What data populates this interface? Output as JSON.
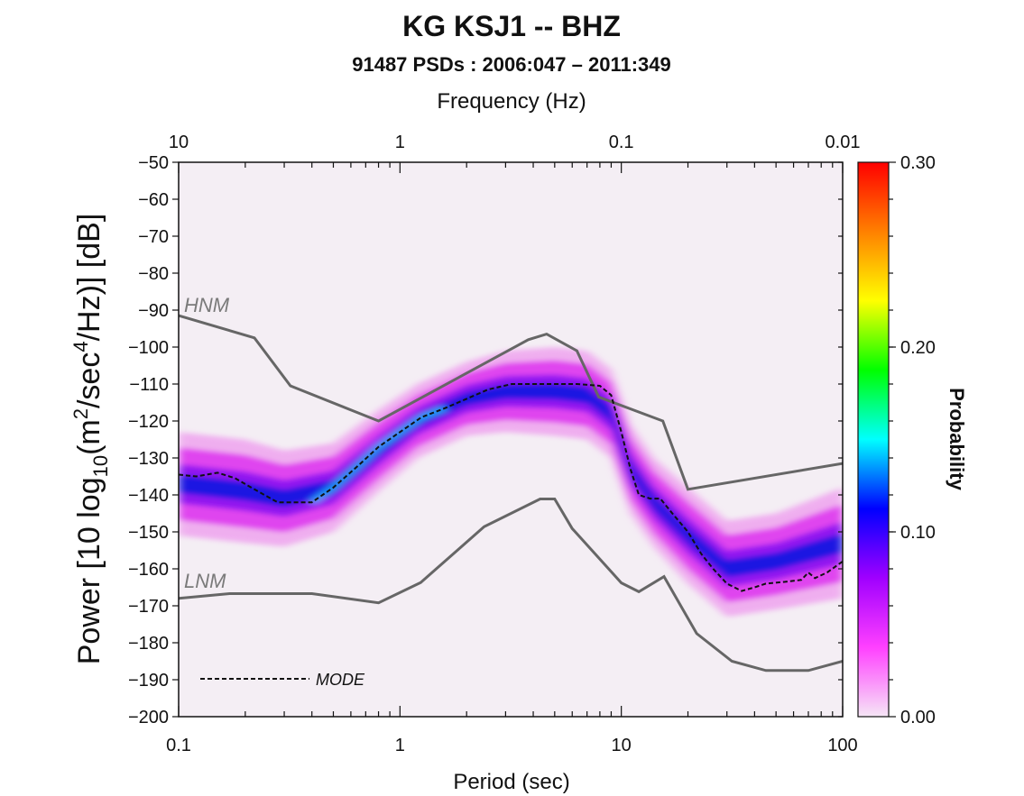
{
  "chart_data": {
    "type": "heatmap",
    "title": "KG KSJ1 -- BHZ",
    "subtitle": "91487 PSDs : 2006:047 – 2011:349",
    "xlabel": "Period (sec)",
    "x2label": "Frequency (Hz)",
    "ylabel": "Power [10 log10(m²/sec⁴/Hz)] [dB]",
    "ylabel_parts": {
      "main1": "Power [10 log",
      "sub": "10",
      "main2": "(m",
      "sup1": "2",
      "main3": "/sec",
      "sup2": "4",
      "main4": "/Hz)] [dB]"
    },
    "x_scale": "log",
    "xlim": [
      0.1,
      100
    ],
    "ylim": [
      -200,
      -50
    ],
    "x_ticks": [
      {
        "value": 0.1,
        "label": "0.1"
      },
      {
        "value": 1,
        "label": "1"
      },
      {
        "value": 10,
        "label": "10"
      },
      {
        "value": 100,
        "label": "100"
      }
    ],
    "x2_ticks": [
      {
        "value": 0.1,
        "label": "10"
      },
      {
        "value": 1,
        "label": "1"
      },
      {
        "value": 10,
        "label": "0.1"
      },
      {
        "value": 100,
        "label": "0.01"
      }
    ],
    "y_ticks": [
      -50,
      -60,
      -70,
      -80,
      -90,
      -100,
      -110,
      -120,
      -130,
      -140,
      -150,
      -160,
      -170,
      -180,
      -190,
      -200
    ],
    "y_tick_labels": [
      "−50",
      "−60",
      "−70",
      "−80",
      "−90",
      "−100",
      "−110",
      "−120",
      "−130",
      "−140",
      "−150",
      "−160",
      "−170",
      "−180",
      "−190",
      "−200"
    ],
    "colorbar": {
      "label": "Probability",
      "range": [
        0.0,
        0.3
      ],
      "ticks": [
        {
          "value": 0.3,
          "label": "0.30"
        },
        {
          "value": 0.2,
          "label": "0.20"
        },
        {
          "value": 0.1,
          "label": "0.10"
        },
        {
          "value": 0.0,
          "label": "0.00"
        }
      ],
      "colors": [
        "#f5e6f5",
        "#ff40ff",
        "#a000ff",
        "#0000ff",
        "#00ffff",
        "#00ff00",
        "#ffff00",
        "#ff8000",
        "#ff0000"
      ]
    },
    "noise_models": [
      {
        "name": "HNM",
        "color": "#666666",
        "points": [
          [
            0.1,
            -91.5
          ],
          [
            0.22,
            -97.5
          ],
          [
            0.32,
            -110.5
          ],
          [
            0.8,
            -120
          ],
          [
            3.8,
            -98
          ],
          [
            4.6,
            -96.5
          ],
          [
            6.3,
            -101
          ],
          [
            7.9,
            -113.5
          ],
          [
            15.4,
            -120
          ],
          [
            20,
            -138.5
          ],
          [
            100,
            -131.5
          ]
        ]
      },
      {
        "name": "LNM",
        "color": "#666666",
        "points": [
          [
            0.1,
            -168
          ],
          [
            0.17,
            -166.7
          ],
          [
            0.4,
            -166.7
          ],
          [
            0.8,
            -169.2
          ],
          [
            1.24,
            -163.7
          ],
          [
            2.4,
            -148.6
          ],
          [
            4.3,
            -141.1
          ],
          [
            5.0,
            -141.1
          ],
          [
            6.0,
            -149.1
          ],
          [
            10.0,
            -163.8
          ],
          [
            12.0,
            -166.2
          ],
          [
            15.6,
            -162.1
          ],
          [
            21.9,
            -177.5
          ],
          [
            31.6,
            -185
          ],
          [
            45,
            -187.5
          ],
          [
            70,
            -187.5
          ],
          [
            100,
            -185
          ]
        ]
      }
    ],
    "mode": {
      "name": "MODE",
      "points": [
        [
          0.1,
          -134.5
        ],
        [
          0.12,
          -135
        ],
        [
          0.15,
          -134
        ],
        [
          0.18,
          -135.5
        ],
        [
          0.22,
          -138.5
        ],
        [
          0.28,
          -142
        ],
        [
          0.4,
          -142
        ],
        [
          0.5,
          -138
        ],
        [
          0.65,
          -132
        ],
        [
          0.8,
          -127
        ],
        [
          1.0,
          -123
        ],
        [
          1.25,
          -119
        ],
        [
          1.6,
          -116.5
        ],
        [
          2.0,
          -114
        ],
        [
          2.5,
          -111.5
        ],
        [
          3.2,
          -110
        ],
        [
          4.0,
          -110
        ],
        [
          5.0,
          -110
        ],
        [
          6.3,
          -110
        ],
        [
          8.0,
          -110.5
        ],
        [
          9.0,
          -113
        ],
        [
          10.0,
          -123
        ],
        [
          11.0,
          -133
        ],
        [
          12.0,
          -140
        ],
        [
          13.5,
          -141
        ],
        [
          15.0,
          -141
        ],
        [
          17.0,
          -145
        ],
        [
          20.0,
          -150
        ],
        [
          23.0,
          -156
        ],
        [
          26.0,
          -160
        ],
        [
          30.0,
          -164
        ],
        [
          35.0,
          -166
        ],
        [
          40.0,
          -165
        ],
        [
          45.0,
          -164
        ],
        [
          55.0,
          -163.5
        ],
        [
          65.0,
          -163
        ],
        [
          70.0,
          -161
        ],
        [
          75.0,
          -162.5
        ],
        [
          85.0,
          -161
        ],
        [
          100.0,
          -158
        ]
      ]
    },
    "legend": {
      "label": "MODE",
      "placement": "bottom-left"
    },
    "density_bands": [
      {
        "period": 0.1,
        "center": -137,
        "width": 14
      },
      {
        "period": 0.2,
        "center": -139,
        "width": 14
      },
      {
        "period": 0.3,
        "center": -141,
        "width": 13
      },
      {
        "period": 0.5,
        "center": -138,
        "width": 12
      },
      {
        "period": 0.8,
        "center": -128,
        "width": 11
      },
      {
        "period": 1.2,
        "center": -120,
        "width": 10
      },
      {
        "period": 2.0,
        "center": -114,
        "width": 10
      },
      {
        "period": 3.0,
        "center": -112,
        "width": 11
      },
      {
        "period": 5.0,
        "center": -112,
        "width": 12
      },
      {
        "period": 7.0,
        "center": -113,
        "width": 12
      },
      {
        "period": 9.0,
        "center": -118,
        "width": 12
      },
      {
        "period": 11.0,
        "center": -133,
        "width": 12
      },
      {
        "period": 14.0,
        "center": -142,
        "width": 12
      },
      {
        "period": 20.0,
        "center": -151,
        "width": 13
      },
      {
        "period": 30.0,
        "center": -160,
        "width": 13
      },
      {
        "period": 50.0,
        "center": -158,
        "width": 13
      },
      {
        "period": 100.0,
        "center": -153,
        "width": 15
      }
    ]
  }
}
